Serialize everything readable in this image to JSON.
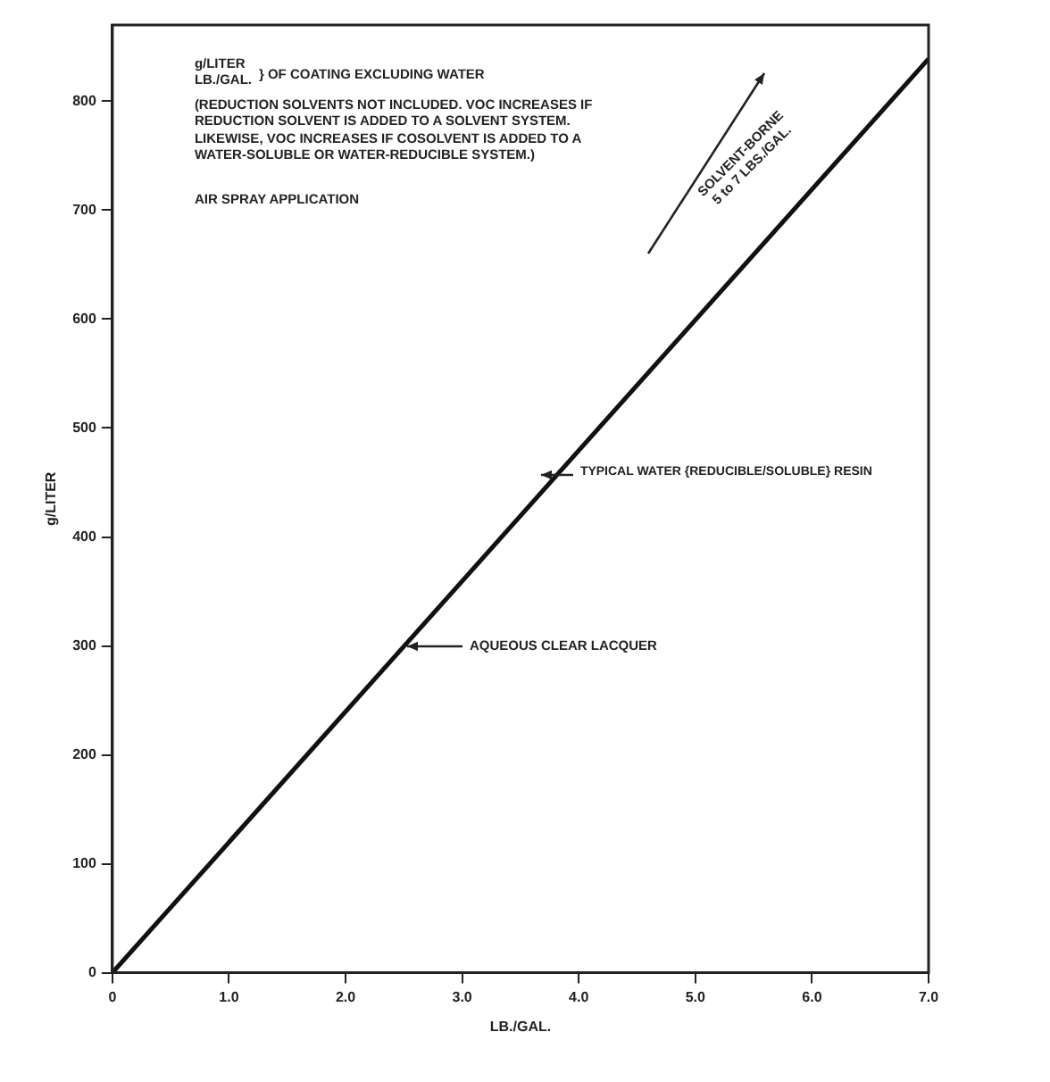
{
  "chart_data": {
    "type": "line",
    "xlabel": "LB./GAL.",
    "ylabel": "g/LITER",
    "x": [
      0,
      7.0
    ],
    "series": [
      {
        "color": "#111111",
        "values": [
          0,
          839
        ]
      }
    ],
    "xlim": [
      0,
      7.0
    ],
    "xticks": [
      0,
      {
        "value": 1,
        "label": "1.0"
      },
      {
        "value": 2,
        "label": "2.0"
      },
      {
        "value": 3,
        "label": "3.0"
      },
      {
        "value": 4,
        "label": "4.0"
      },
      {
        "value": 5,
        "label": "5.0"
      },
      {
        "value": 6,
        "label": "6.0"
      },
      {
        "value": 7,
        "label": "7.0"
      }
    ],
    "ylim": [
      0,
      870
    ],
    "yticks": [
      0,
      100,
      200,
      300,
      400,
      500,
      600,
      700,
      800
    ],
    "grid": false,
    "legend": false,
    "marker": "none",
    "line_style": "solid",
    "annotations": [
      "g/LITER\nLB./GAL.",
      "} OF COATING EXCLUDING WATER",
      "(REDUCTION SOLVENTS NOT INCLUDED.  VOC INCREASES IF\nREDUCTION SOLVENT IS ADDED TO A SOLVENT SYSTEM.\nLIKEWISE, VOC INCREASES IF COSOLVENT IS ADDED TO A\nWATER-SOLUBLE OR WATER-REDUCIBLE SYSTEM.)",
      "AIR SPRAY APPLICATION",
      "SOLVENT-BORNE\n5 to 7 LBS./GAL.",
      "TYPICAL WATER {REDUCIBLE/SOLUBLE} RESIN",
      "AQUEOUS CLEAR LACQUER"
    ]
  }
}
